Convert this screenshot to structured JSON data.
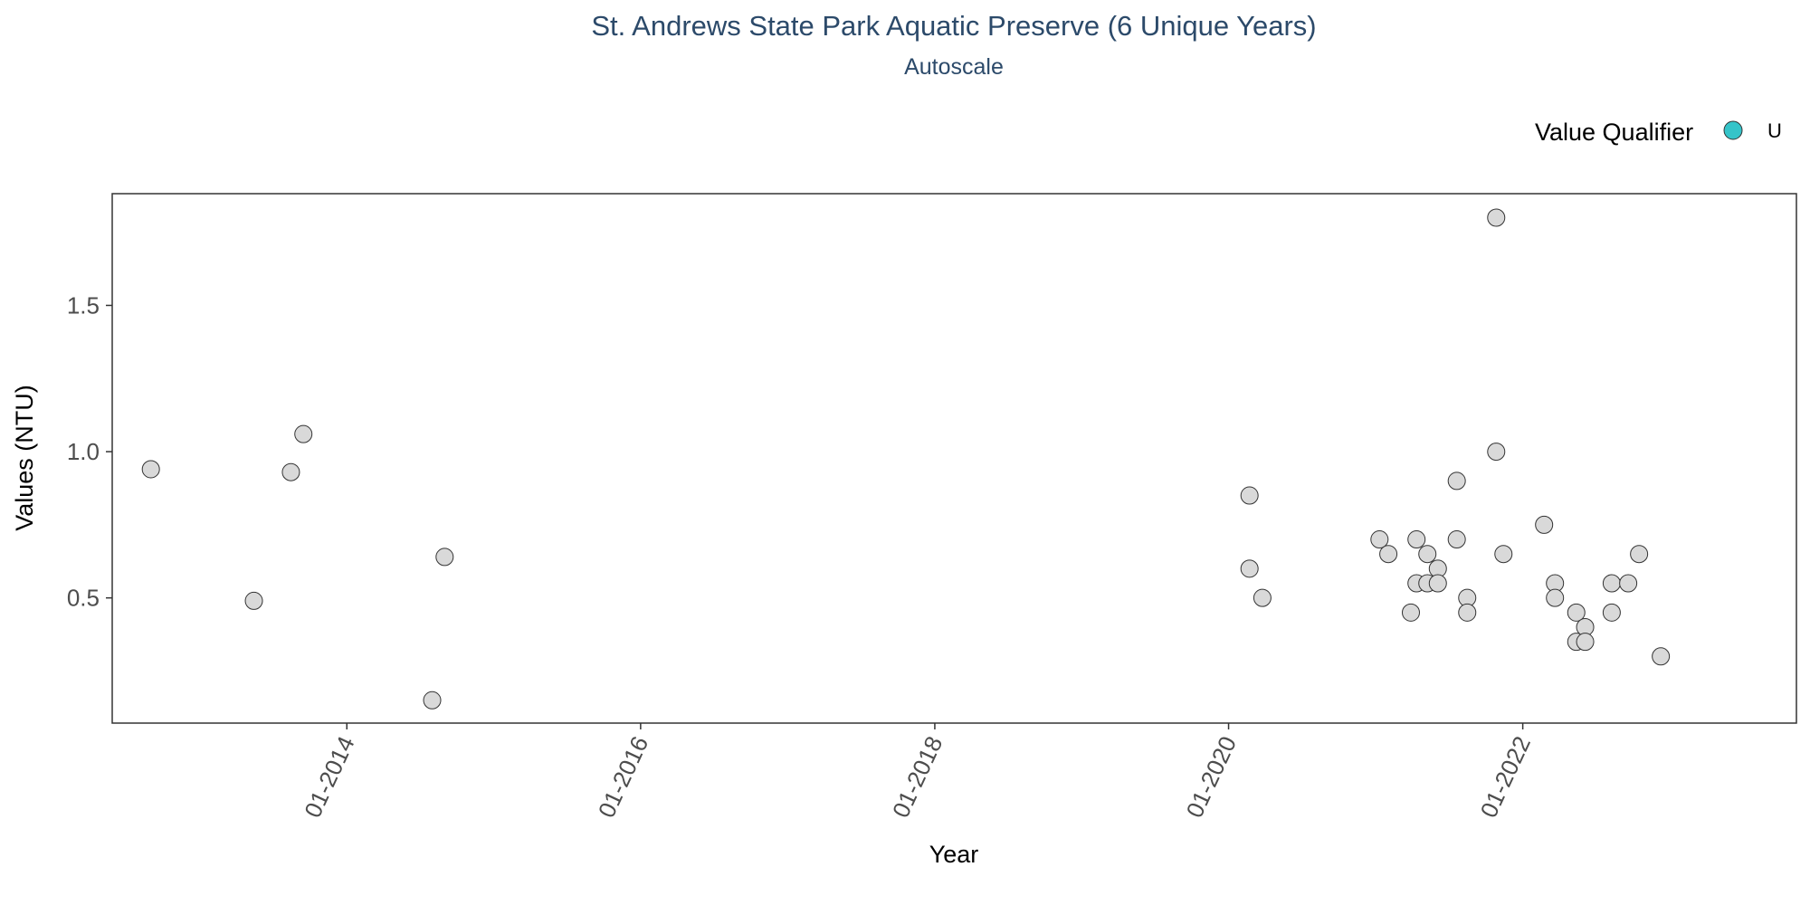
{
  "chart_data": {
    "type": "scatter",
    "title": "St. Andrews State Park Aquatic Preserve (6 Unique Years)",
    "subtitle": "Autoscale",
    "xlabel": "Year",
    "ylabel": "Values (NTU)",
    "x_axis_type": "date",
    "xlim": [
      "2012-05-28",
      "2023-11-12"
    ],
    "ylim": [
      0.072,
      1.882
    ],
    "x_ticks": [
      {
        "date": "2014-01-01",
        "label": "01-2014"
      },
      {
        "date": "2016-01-01",
        "label": "01-2016"
      },
      {
        "date": "2018-01-01",
        "label": "01-2018"
      },
      {
        "date": "2020-01-01",
        "label": "01-2020"
      },
      {
        "date": "2022-01-01",
        "label": "01-2022"
      }
    ],
    "y_ticks": [
      {
        "value": 0.5,
        "label": "0.5"
      },
      {
        "value": 1.0,
        "label": "1.0"
      },
      {
        "value": 1.5,
        "label": "1.5"
      }
    ],
    "grid": false,
    "legend": {
      "title": "Value Qualifier",
      "position": "top-right",
      "items": [
        {
          "label": "U",
          "color": "#35c4c9"
        }
      ]
    },
    "point_fill": "#d9d9d9",
    "point_stroke": "#333333",
    "title_color": "#2c4a6a",
    "series": [
      {
        "points": [
          {
            "x": "2012-09-01",
            "y": 0.94
          },
          {
            "x": "2013-05-15",
            "y": 0.49
          },
          {
            "x": "2013-08-15",
            "y": 0.93
          },
          {
            "x": "2013-09-15",
            "y": 1.06
          },
          {
            "x": "2014-08-01",
            "y": 0.15
          },
          {
            "x": "2014-09-01",
            "y": 0.64
          },
          {
            "x": "2020-02-22",
            "y": 0.85
          },
          {
            "x": "2020-02-22",
            "y": 0.6
          },
          {
            "x": "2020-03-25",
            "y": 0.5
          },
          {
            "x": "2021-01-10",
            "y": 0.7
          },
          {
            "x": "2021-02-01",
            "y": 0.65
          },
          {
            "x": "2021-03-29",
            "y": 0.45
          },
          {
            "x": "2021-04-12",
            "y": 0.7
          },
          {
            "x": "2021-04-12",
            "y": 0.55
          },
          {
            "x": "2021-05-09",
            "y": 0.65
          },
          {
            "x": "2021-05-09",
            "y": 0.55
          },
          {
            "x": "2021-06-04",
            "y": 0.6
          },
          {
            "x": "2021-06-04",
            "y": 0.55
          },
          {
            "x": "2021-07-21",
            "y": 0.9
          },
          {
            "x": "2021-07-21",
            "y": 0.7
          },
          {
            "x": "2021-08-16",
            "y": 0.5
          },
          {
            "x": "2021-08-16",
            "y": 0.45
          },
          {
            "x": "2021-10-27",
            "y": 1.8
          },
          {
            "x": "2021-10-27",
            "y": 1.0
          },
          {
            "x": "2021-11-14",
            "y": 0.65
          },
          {
            "x": "2022-02-23",
            "y": 0.75
          },
          {
            "x": "2022-03-22",
            "y": 0.55
          },
          {
            "x": "2022-03-22",
            "y": 0.5
          },
          {
            "x": "2022-05-14",
            "y": 0.45
          },
          {
            "x": "2022-05-14",
            "y": 0.35
          },
          {
            "x": "2022-06-05",
            "y": 0.4
          },
          {
            "x": "2022-06-05",
            "y": 0.35
          },
          {
            "x": "2022-08-10",
            "y": 0.55
          },
          {
            "x": "2022-08-10",
            "y": 0.45
          },
          {
            "x": "2022-09-20",
            "y": 0.55
          },
          {
            "x": "2022-10-17",
            "y": 0.65
          },
          {
            "x": "2022-12-10",
            "y": 0.3
          }
        ]
      }
    ]
  }
}
